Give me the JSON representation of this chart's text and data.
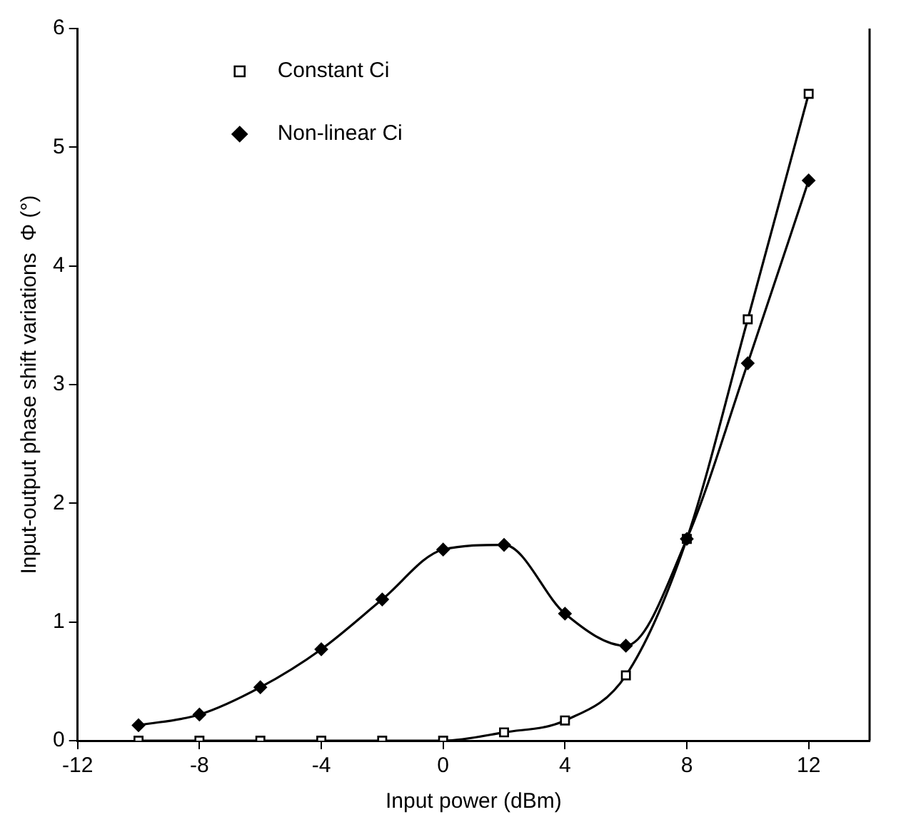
{
  "chart_data": {
    "type": "line",
    "xlabel": "Input power (dBm)",
    "ylabel": "Input-output phase shift variations  Φ (°)",
    "xlim": [
      -12,
      14
    ],
    "xticks": [
      -12,
      -8,
      -4,
      0,
      4,
      8,
      12
    ],
    "ylim": [
      0,
      6
    ],
    "yticks": [
      0,
      1,
      2,
      3,
      4,
      5,
      6
    ],
    "grid": false,
    "legend": "top left",
    "series": [
      {
        "name": "Constant Ci",
        "color": "#000000",
        "marker": "square",
        "x": [
          -10,
          -8,
          -6,
          -4,
          -2,
          0,
          2,
          4,
          6,
          8,
          10,
          12
        ],
        "values": [
          0,
          0,
          0,
          0,
          0,
          0,
          0.07,
          0.17,
          0.55,
          1.7,
          3.55,
          5.45
        ]
      },
      {
        "name": "Non-linear Ci",
        "color": "#000000",
        "marker": "diamond",
        "x": [
          -10,
          -8,
          -6,
          -4,
          -2,
          0,
          2,
          4,
          6,
          8,
          10,
          12
        ],
        "values": [
          0.13,
          0.22,
          0.45,
          0.77,
          1.19,
          1.61,
          1.65,
          1.07,
          0.8,
          1.7,
          3.18,
          4.72
        ]
      }
    ]
  }
}
